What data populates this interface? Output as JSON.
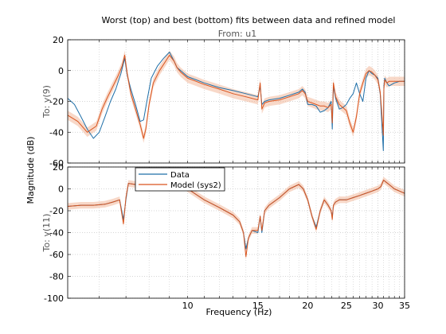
{
  "chart_data": {
    "type": "line",
    "title": "Worst (top) and best (bottom) fits between data and refined model",
    "subtitle": "From: u1",
    "xlabel": "Frequency  (Hz)",
    "ylabel": "Magnitude (dB)",
    "x_scale": "log",
    "xlim": [
      5,
      35
    ],
    "x_ticks": [
      10,
      15,
      20,
      25,
      30,
      35
    ],
    "legend": {
      "placement": "top-center of lower panel",
      "entries": [
        "Data",
        "Model (sys2)"
      ]
    },
    "colors": {
      "data": "#1f6fa8",
      "model": "#d9541e",
      "model_band": "#f3b89a",
      "grid": "#c8c8c8"
    },
    "panels": [
      {
        "ylabel": "To: y(9)",
        "ylim": [
          -60,
          20
        ],
        "y_ticks": [
          20,
          0,
          -20,
          -40,
          -60
        ],
        "series": [
          {
            "name": "Data",
            "x": [
              5.0,
              5.2,
              5.4,
              5.6,
              5.8,
              6.0,
              6.2,
              6.4,
              6.6,
              6.8,
              6.95,
              7.05,
              7.2,
              7.4,
              7.6,
              7.75,
              7.9,
              8.1,
              8.4,
              8.7,
              9.0,
              9.25,
              9.4,
              9.6,
              10.0,
              10.5,
              11.0,
              12.0,
              13.0,
              14.0,
              15.0,
              15.2,
              15.35,
              15.6,
              16.0,
              17.0,
              18.0,
              19.0,
              19.4,
              19.7,
              20.0,
              20.5,
              21.0,
              21.5,
              22.0,
              22.5,
              22.9,
              23.05,
              23.2,
              23.5,
              24.0,
              24.5,
              25.0,
              25.5,
              26.0,
              26.5,
              27.0,
              27.5,
              28.0,
              28.5,
              29.0,
              29.5,
              30.0,
              30.4,
              30.7,
              30.95,
              31.05,
              31.2,
              31.6,
              32.0,
              33.0,
              34.0,
              35.0
            ],
            "y": [
              -18,
              -22,
              -30,
              -38,
              -44,
              -40,
              -30,
              -20,
              -12,
              -2,
              8,
              -3,
              -12,
              -22,
              -33,
              -32,
              -20,
              -5,
              3,
              8,
              12,
              6,
              2,
              0,
              -4,
              -6,
              -8,
              -11,
              -13,
              -15,
              -17,
              -10,
              -22,
              -20,
              -19,
              -18,
              -16,
              -14,
              -12,
              -14,
              -22,
              -22,
              -23,
              -27,
              -26,
              -24,
              -20,
              -38,
              -10,
              -18,
              -25,
              -24,
              -22,
              -18,
              -15,
              -8,
              -15,
              -20,
              -5,
              0,
              -2,
              -3,
              -5,
              -15,
              -35,
              -52,
              -10,
              -5,
              -8,
              -10,
              -8,
              -7,
              -7
            ]
          },
          {
            "name": "Model (sys2)",
            "x": [
              5.0,
              5.3,
              5.6,
              5.9,
              6.1,
              6.3,
              6.5,
              6.7,
              6.85,
              6.95,
              7.05,
              7.2,
              7.4,
              7.6,
              7.75,
              7.85,
              8.0,
              8.2,
              8.5,
              8.8,
              9.0,
              9.25,
              9.4,
              9.6,
              10.0,
              10.5,
              11.0,
              12.0,
              13.0,
              14.0,
              15.0,
              15.2,
              15.35,
              15.6,
              16.0,
              17.0,
              18.0,
              19.0,
              19.4,
              19.7,
              20.0,
              20.5,
              21.0,
              21.5,
              22.0,
              22.5,
              22.9,
              23.05,
              23.2,
              23.5,
              24.0,
              24.5,
              25.0,
              25.5,
              26.0,
              26.5,
              27.0,
              27.5,
              28.0,
              28.5,
              29.0,
              29.5,
              30.0,
              30.4,
              30.7,
              30.95,
              31.05,
              31.2,
              31.6,
              32.0,
              33.0,
              34.0,
              35.0
            ],
            "y": [
              -29,
              -33,
              -40,
              -36,
              -25,
              -17,
              -10,
              -3,
              3,
              10,
              -2,
              -15,
              -25,
              -35,
              -44,
              -38,
              -22,
              -8,
              0,
              6,
              10,
              6,
              2,
              -1,
              -5,
              -7,
              -9,
              -12,
              -15,
              -17,
              -19,
              -8,
              -25,
              -21,
              -20,
              -19,
              -17,
              -15,
              -13,
              -15,
              -20,
              -21,
              -22,
              -23,
              -23,
              -24,
              -22,
              -34,
              -8,
              -17,
              -22,
              -24,
              -26,
              -34,
              -40,
              -30,
              -15,
              -8,
              -2,
              0,
              -1,
              -3,
              -6,
              -14,
              -28,
              -42,
              -12,
              -6,
              -8,
              -7,
              -7,
              -7,
              -7
            ]
          }
        ]
      },
      {
        "ylabel": "To: y(11)",
        "ylim": [
          -100,
          20
        ],
        "y_ticks": [
          20,
          0,
          -20,
          -40,
          -60,
          -80,
          -100
        ],
        "series": [
          {
            "name": "Data",
            "x": [
              5.0,
              5.4,
              5.8,
              6.2,
              6.5,
              6.75,
              6.9,
              7.0,
              7.1,
              7.4,
              7.8,
              8.2,
              8.6,
              9.0,
              9.3,
              9.6,
              10.0,
              11.0,
              12.0,
              13.0,
              13.5,
              13.8,
              14.0,
              14.2,
              14.5,
              15.0,
              15.2,
              15.35,
              15.6,
              16.0,
              17.0,
              18.0,
              19.0,
              19.5,
              20.0,
              20.5,
              21.0,
              21.5,
              22.0,
              22.5,
              22.9,
              23.05,
              23.2,
              23.5,
              24.0,
              25.0,
              26.0,
              27.0,
              28.0,
              29.0,
              30.0,
              30.5,
              31.0,
              31.5,
              32.0,
              33.0,
              34.0,
              35.0
            ],
            "y": [
              -16,
              -15,
              -15,
              -14,
              -12,
              -10,
              -28,
              -10,
              5,
              4,
              4,
              6,
              8,
              10,
              9,
              6,
              0,
              -10,
              -17,
              -24,
              -30,
              -40,
              -55,
              -45,
              -38,
              -40,
              -25,
              -40,
              -20,
              -15,
              -8,
              0,
              4,
              0,
              -10,
              -25,
              -35,
              -20,
              -10,
              -15,
              -20,
              -26,
              -15,
              -12,
              -10,
              -10,
              -8,
              -6,
              -4,
              -2,
              0,
              2,
              8,
              6,
              4,
              0,
              -2,
              -4
            ]
          },
          {
            "name": "Model (sys2)",
            "x": [
              5.0,
              5.4,
              5.8,
              6.2,
              6.5,
              6.75,
              6.9,
              7.0,
              7.1,
              7.4,
              7.8,
              8.2,
              8.6,
              9.0,
              9.3,
              9.6,
              10.0,
              11.0,
              12.0,
              13.0,
              13.5,
              13.8,
              14.0,
              14.2,
              14.5,
              15.0,
              15.2,
              15.35,
              15.6,
              16.0,
              17.0,
              18.0,
              19.0,
              19.5,
              20.0,
              20.5,
              21.0,
              21.5,
              22.0,
              22.5,
              22.9,
              23.05,
              23.2,
              23.5,
              24.0,
              25.0,
              26.0,
              27.0,
              28.0,
              29.0,
              30.0,
              30.5,
              31.0,
              31.5,
              32.0,
              33.0,
              34.0,
              35.0
            ],
            "y": [
              -16,
              -15,
              -15,
              -14,
              -12,
              -10,
              -32,
              -8,
              5,
              4,
              4,
              6,
              8,
              10,
              9,
              6,
              0,
              -10,
              -17,
              -24,
              -30,
              -40,
              -62,
              -45,
              -38,
              -38,
              -25,
              -38,
              -20,
              -15,
              -8,
              0,
              4,
              0,
              -10,
              -25,
              -37,
              -20,
              -10,
              -15,
              -20,
              -28,
              -15,
              -12,
              -10,
              -10,
              -8,
              -6,
              -4,
              -2,
              0,
              2,
              8,
              6,
              4,
              0,
              -2,
              -4
            ]
          }
        ]
      }
    ]
  }
}
